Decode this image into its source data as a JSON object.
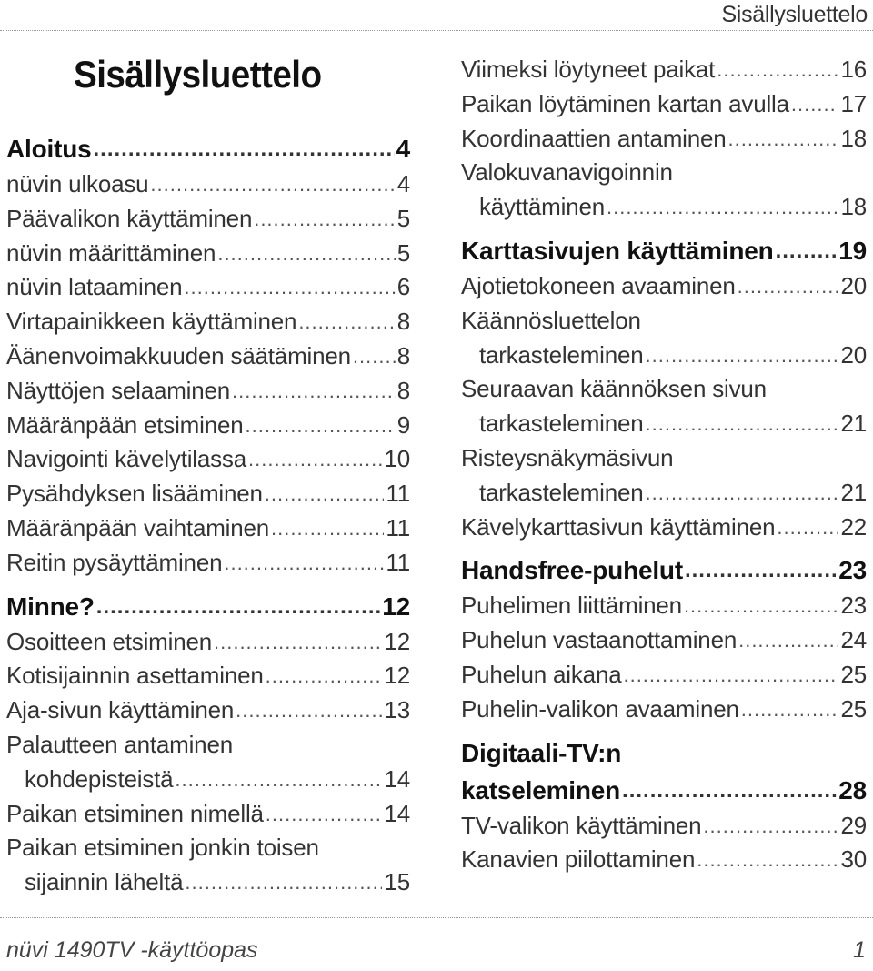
{
  "header": {
    "running_title": "Sisällysluettelo"
  },
  "title": "Sisällysluettelo",
  "left_column": [
    {
      "type": "section",
      "label": "Aloitus",
      "page": "4"
    },
    {
      "type": "item",
      "label": "nüvin ulkoasu",
      "page": "4"
    },
    {
      "type": "item",
      "label": "Päävalikon käyttäminen",
      "page": "5"
    },
    {
      "type": "item",
      "label": "nüvin määrittäminen",
      "page": "5"
    },
    {
      "type": "item",
      "label": "nüvin lataaminen",
      "page": "6"
    },
    {
      "type": "item",
      "label": "Virtapainikkeen käyttäminen",
      "page": "8"
    },
    {
      "type": "item",
      "label": "Äänenvoimakkuuden säätäminen",
      "page": "8"
    },
    {
      "type": "item",
      "label": "Näyttöjen selaaminen",
      "page": "8"
    },
    {
      "type": "item",
      "label": "Määränpään etsiminen",
      "page": "9"
    },
    {
      "type": "item",
      "label": "Navigointi kävelytilassa",
      "page": "10"
    },
    {
      "type": "item",
      "label": "Pysähdyksen lisääminen",
      "page": "11"
    },
    {
      "type": "item",
      "label": "Määränpään vaihtaminen",
      "page": "11"
    },
    {
      "type": "item",
      "label": "Reitin pysäyttäminen",
      "page": "11"
    },
    {
      "type": "section",
      "label": "Minne?",
      "page": "12"
    },
    {
      "type": "item",
      "label": "Osoitteen etsiminen",
      "page": "12"
    },
    {
      "type": "item",
      "label": "Kotisijainnin asettaminen",
      "page": "12"
    },
    {
      "type": "item",
      "label": "Aja-sivun käyttäminen",
      "page": "13"
    },
    {
      "type": "multi",
      "lines": [
        "Palautteen antaminen"
      ],
      "last": "kohdepisteistä",
      "page": "14"
    },
    {
      "type": "item",
      "label": "Paikan etsiminen nimellä",
      "page": "14"
    },
    {
      "type": "multi",
      "lines": [
        "Paikan etsiminen jonkin toisen"
      ],
      "last": "sijainnin läheltä",
      "page": "15"
    }
  ],
  "right_column": [
    {
      "type": "item",
      "label": "Viimeksi löytyneet paikat",
      "page": "16"
    },
    {
      "type": "item",
      "label": "Paikan löytäminen kartan avulla",
      "page": "17"
    },
    {
      "type": "item",
      "label": "Koordinaattien antaminen",
      "page": "18"
    },
    {
      "type": "multi",
      "lines": [
        "Valokuvanavigoinnin"
      ],
      "last": "käyttäminen",
      "page": "18"
    },
    {
      "type": "section",
      "label": "Karttasivujen käyttäminen",
      "page": "19"
    },
    {
      "type": "item",
      "label": "Ajotietokoneen avaaminen",
      "page": "20"
    },
    {
      "type": "multi",
      "lines": [
        "Käännösluettelon"
      ],
      "last": "tarkasteleminen",
      "page": "20"
    },
    {
      "type": "multi",
      "lines": [
        "Seuraavan käännöksen sivun"
      ],
      "last": "tarkasteleminen",
      "page": "21"
    },
    {
      "type": "multi",
      "lines": [
        "Risteysnäkymäsivun"
      ],
      "last": "tarkasteleminen",
      "page": "21"
    },
    {
      "type": "item",
      "label": "Kävelykarttasivun käyttäminen",
      "page": "22"
    },
    {
      "type": "section",
      "label": "Handsfree-puhelut",
      "page": "23"
    },
    {
      "type": "item",
      "label": "Puhelimen liittäminen",
      "page": "23"
    },
    {
      "type": "item",
      "label": "Puhelun vastaanottaminen",
      "page": "24"
    },
    {
      "type": "item",
      "label": "Puhelun aikana",
      "page": "25"
    },
    {
      "type": "item",
      "label": "Puhelin-valikon avaaminen",
      "page": "25"
    },
    {
      "type": "section-multi",
      "lines": [
        "Digitaali-TV:n"
      ],
      "last": "katseleminen",
      "page": "28"
    },
    {
      "type": "item",
      "label": "TV-valikon käyttäminen",
      "page": "29"
    },
    {
      "type": "item",
      "label": "Kanavien piilottaminen",
      "page": "30"
    }
  ],
  "footer": {
    "manual_title": "nüvi 1490TV -käyttöopas",
    "page_number": "1"
  }
}
